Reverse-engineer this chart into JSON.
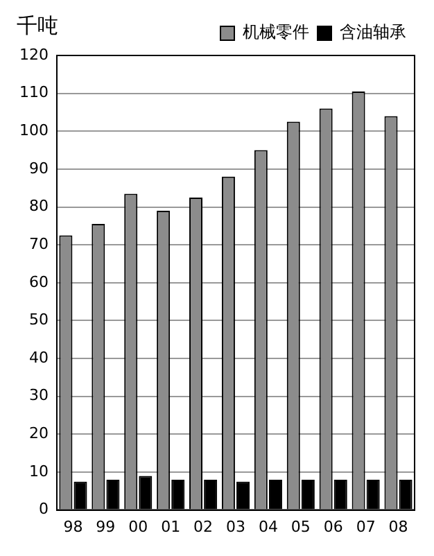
{
  "chart_data": {
    "type": "bar",
    "ylabel": "千吨",
    "categories": [
      "98",
      "99",
      "00",
      "01",
      "02",
      "03",
      "04",
      "05",
      "06",
      "07",
      "08"
    ],
    "series": [
      {
        "name": "机械零件",
        "color": "#8c8c8c",
        "values": [
          72.5,
          75.5,
          83.5,
          79,
          82.5,
          88,
          95,
          102.5,
          106,
          110.5,
          104
        ]
      },
      {
        "name": "含油轴承",
        "color": "#000000",
        "values": [
          7.5,
          8,
          9,
          8,
          8,
          7.5,
          8,
          8,
          8,
          8,
          8
        ]
      }
    ],
    "ylim": [
      0,
      120
    ],
    "yticks": [
      0,
      10,
      20,
      30,
      40,
      50,
      60,
      70,
      80,
      90,
      100,
      110,
      120
    ],
    "grid": "y",
    "legend": "top"
  }
}
